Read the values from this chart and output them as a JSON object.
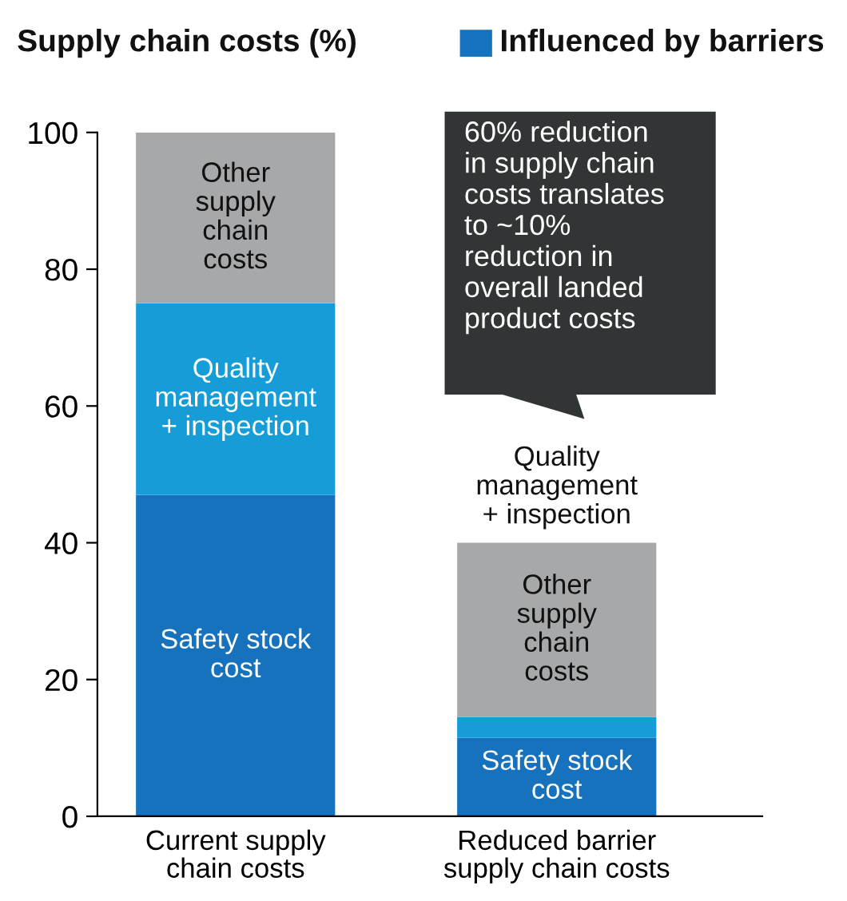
{
  "chart_data": {
    "type": "bar",
    "stacked": true,
    "title": "Supply chain costs (%)",
    "categories": [
      "Current supply\nchain costs",
      "Reduced barrier\nsupply chain costs"
    ],
    "series": [
      {
        "name": "Safety stock\ncost",
        "color": "#1672bc",
        "values": [
          47,
          11.5
        ]
      },
      {
        "name": "Quality\nmanagement\n+ inspection",
        "color": "#169dd8",
        "values": [
          28,
          3
        ]
      },
      {
        "name": "Other\nsupply\nchain\ncosts",
        "color": "#a6a8aa",
        "values": [
          25,
          25.5
        ]
      }
    ],
    "ylim": [
      0,
      100
    ],
    "yticks": [
      0,
      20,
      40,
      60,
      80,
      100
    ],
    "grid": false,
    "annotations": [
      "Influenced by barriers",
      "60% reduction\nin supply chain\ncosts translates\nto ~10%\nreduction in\noverall landed\nproduct costs"
    ]
  }
}
